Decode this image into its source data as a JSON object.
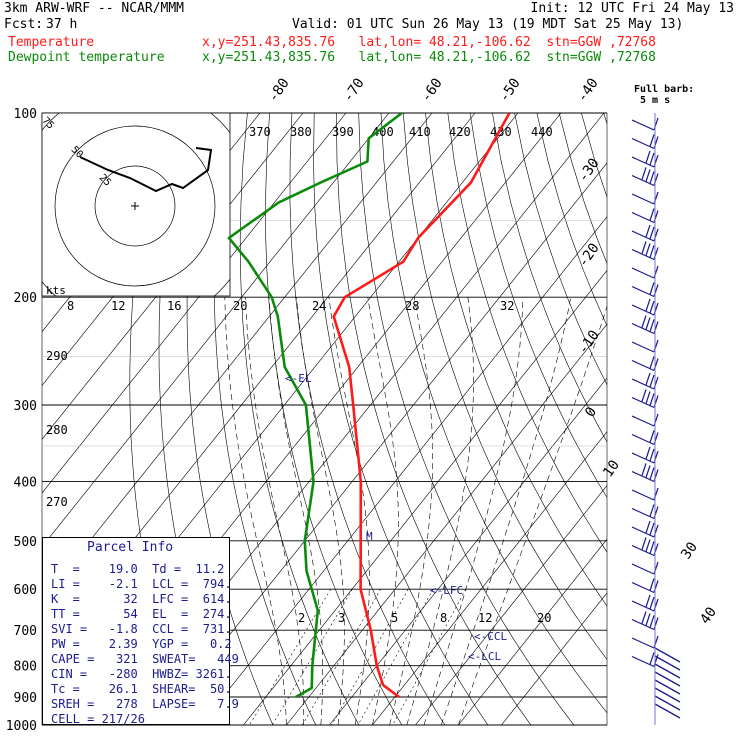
{
  "header": {
    "model": "3km ARW-WRF -- NCAR/MMM",
    "init": "Init: 12 UTC Fri 24 May 13",
    "fcst_label": "Fcst:",
    "fcst_value": "37 h",
    "valid": "Valid: 01 UTC Sun 26 May 13 (19 MDT Sat 25 May 13)",
    "temp_label": "Temperature",
    "dew_label": "Dewpoint temperature",
    "temp_loc": "x,y=251.43,835.76   lat,lon= 48.21,-106.62  stn=GGW ,72768",
    "dew_loc": "x,y=251.43,835.76   lat,lon= 48.21,-106.62  stn=GGW ,72768"
  },
  "barb_legend": {
    "line1": "Full barb:",
    "line2": "5 m s"
  },
  "parcel_info": {
    "title": "Parcel Info",
    "rows": [
      "T  =    19.0  Td =  11.2",
      "LI =    -2.1  LCL =  794.",
      "K  =      32  LFC =  614.",
      "TT =      54  EL  =  274.",
      "SVI =   -1.8  CCL =  731.",
      "PW =    2.39  YGP =   0.2",
      "CAPE =   321  SWEAT=   449",
      "CIN =   -280  HWBZ= 3261.",
      "Tc =    26.1  SHEAR=  50.",
      "SREH =   278  LAPSE=   7.9",
      "CELL = 217/26"
    ]
  },
  "hodograph": {
    "ring_labels": [
      "75",
      "50",
      "25"
    ],
    "kts_label": "kts",
    "speed_ticks": [
      "8",
      "12",
      "16",
      "20",
      "24",
      "28",
      "32"
    ]
  },
  "colors": {
    "temperature": "#ff1a1a",
    "dewpoint": "#0b8a0b",
    "annotation": "#1c1c8f"
  },
  "chart_data": {
    "type": "line",
    "subtype": "skew-T log-p sounding",
    "ylabel": "",
    "y_ticks": [
      100,
      200,
      300,
      400,
      500,
      600,
      700,
      800,
      900,
      1000
    ],
    "isotherm_labels": [
      "-80",
      "-70",
      "-60",
      "-50",
      "-40",
      "-30",
      "-20",
      "-10",
      "0",
      "10",
      "30",
      "40"
    ],
    "theta_labels": [
      "370",
      "380",
      "390",
      "400",
      "410",
      "420",
      "430",
      "440"
    ],
    "theta_left_labels": [
      "290",
      "280",
      "270"
    ],
    "mixing_ratio_labels": [
      "2",
      "3",
      "5",
      "8",
      "12",
      "20"
    ],
    "annotations": [
      "EL",
      "M",
      "LFC",
      "CCL",
      "LCL"
    ],
    "series": [
      {
        "name": "Temperature",
        "pressure": [
          100,
          130,
          160,
          175,
          200,
          215,
          260,
          300,
          400,
          500,
          600,
          700,
          800,
          860,
          900
        ],
        "temperature": [
          -62,
          -58,
          -60,
          -59,
          -66,
          -65,
          -52,
          -44,
          -28,
          -17,
          -8,
          2,
          10,
          15,
          21
        ]
      },
      {
        "name": "Dewpoint temperature",
        "pressure": [
          100,
          110,
          120,
          130,
          140,
          160,
          175,
          200,
          215,
          260,
          300,
          400,
          500,
          560,
          650,
          800,
          870,
          900
        ],
        "temperature": [
          -87,
          -90,
          -86,
          -93,
          -99,
          -104,
          -95,
          -83,
          -78,
          -67,
          -55,
          -39,
          -30,
          -24,
          -14,
          -5,
          -1,
          -3
        ]
      }
    ]
  }
}
